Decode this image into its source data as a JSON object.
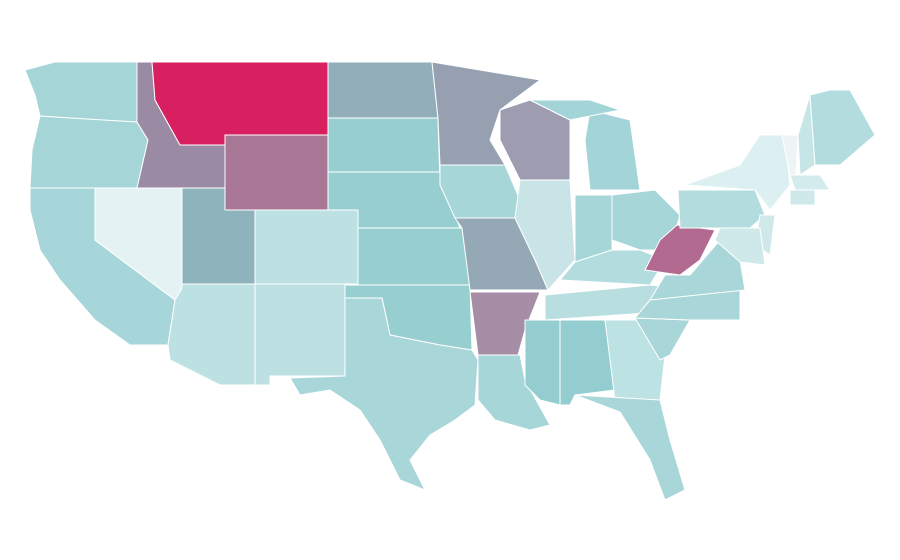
{
  "map": {
    "regions": [
      {
        "color": "#a6d5d8"
      },
      {
        "color": "#a6d5d8"
      },
      {
        "color": "#a6d6d9"
      },
      {
        "color": "#e4f2f4"
      },
      {
        "color": "#9a8aa4"
      },
      {
        "color": "#d81f5f"
      },
      {
        "color": "#a87796"
      },
      {
        "color": "#8fb3bd"
      },
      {
        "color": "#bde1e3"
      },
      {
        "color": "#bde1e3"
      },
      {
        "color": "#bde1e3"
      },
      {
        "color": "#92aebb"
      },
      {
        "color": "#97cfd1"
      },
      {
        "color": "#97cfd1"
      },
      {
        "color": "#97cfd1"
      },
      {
        "color": "#97cfd1"
      },
      {
        "color": "#a9d7d9"
      },
      {
        "color": "#97a0b1"
      },
      {
        "color": "#a6d6d8"
      },
      {
        "color": "#94a8b5"
      },
      {
        "color": "#a58ea6"
      },
      {
        "color": "#a6d6d8"
      },
      {
        "color": "#9d9cb1"
      },
      {
        "color": "#c9e4e7"
      },
      {
        "color": "#a3d4d7"
      },
      {
        "color": "#a3d4d7"
      },
      {
        "color": "#a6d6d8"
      },
      {
        "color": "#a6d6d8"
      },
      {
        "color": "#b3dcdf"
      },
      {
        "color": "#b8dee0"
      },
      {
        "color": "#93cdd0"
      },
      {
        "color": "#93cdd0"
      },
      {
        "color": "#bde2e3"
      },
      {
        "color": "#a9d7d9"
      },
      {
        "color": "#a9d7d9"
      },
      {
        "color": "#a9d7d9"
      },
      {
        "color": "#a9d7d9"
      },
      {
        "color": "#b26a91"
      },
      {
        "color": "#b3dcdf"
      },
      {
        "color": "#dceff1"
      },
      {
        "color": "#eef3f4"
      },
      {
        "color": "#c5e5e7"
      },
      {
        "color": "#b3dcdf"
      },
      {
        "color": "#d3ebed"
      },
      {
        "color": "#cfe9eb"
      },
      {
        "color": "#cfe9eb"
      },
      {
        "color": "#cfe9eb"
      }
    ]
  }
}
